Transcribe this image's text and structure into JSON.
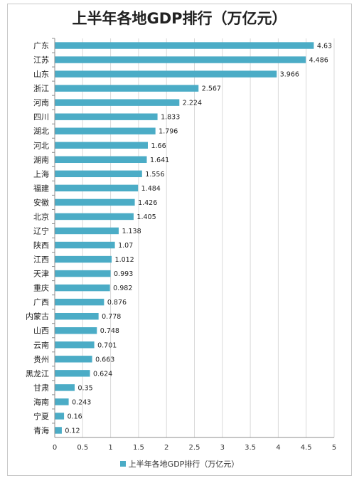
{
  "chart_data": {
    "type": "bar",
    "orientation": "horizontal",
    "title": "上半年各地GDP排行（万亿元）",
    "categories": [
      "广东",
      "江苏",
      "山东",
      "浙江",
      "河南",
      "四川",
      "湖北",
      "河北",
      "湖南",
      "上海",
      "福建",
      "安徽",
      "北京",
      "辽宁",
      "陕西",
      "江西",
      "天津",
      "重庆",
      "广西",
      "内蒙古",
      "山西",
      "云南",
      "贵州",
      "黑龙江",
      "甘肃",
      "海南",
      "宁夏",
      "青海"
    ],
    "series": [
      {
        "name": "上半年各地GDP排行（万亿元）",
        "values": [
          4.63,
          4.486,
          3.966,
          2.567,
          2.224,
          1.833,
          1.796,
          1.66,
          1.641,
          1.556,
          1.484,
          1.426,
          1.405,
          1.138,
          1.07,
          1.012,
          0.993,
          0.982,
          0.876,
          0.778,
          0.748,
          0.701,
          0.663,
          0.624,
          0.35,
          0.243,
          0.16,
          0.12
        ],
        "value_labels": [
          "4.63",
          "4.486",
          "3.966",
          "2.567",
          "2.224",
          "1.833",
          "1.796",
          "1.66",
          "1.641",
          "1.556",
          "1.484",
          "1.426",
          "1.405",
          "1.138",
          "1.07",
          "1.012",
          "0.993",
          "0.982",
          "0.876",
          "0.778",
          "0.748",
          "0.701",
          "0.663",
          "0.624",
          "0.35",
          "0.243",
          "0.16",
          "0.12"
        ]
      }
    ],
    "xlim": [
      0,
      5
    ],
    "x_ticks": [
      "0",
      "0.5",
      "1",
      "1.5",
      "2",
      "2.5",
      "3",
      "3.5",
      "4",
      "4.5",
      "5"
    ],
    "grid": "vertical",
    "legend_position": "bottom",
    "bar_color": "#4bacc6"
  }
}
